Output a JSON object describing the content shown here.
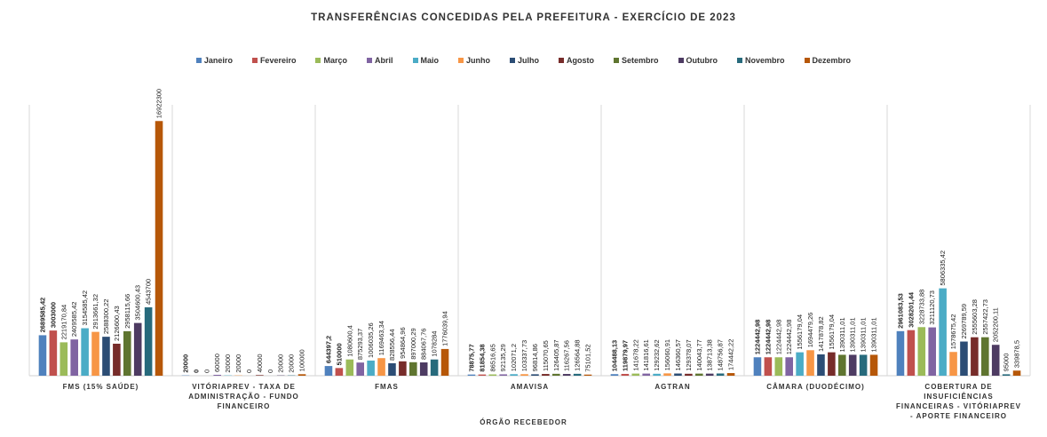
{
  "chart_data": {
    "type": "bar",
    "title": "TRANSFERÊNCIAS CONCEDIDAS PELA PREFEITURA - EXERCÍCIO DE 2023",
    "x_label": "ÓRGÃO RECEBEDOR",
    "categories": [
      "FMS (15% SAÚDE)",
      "VITÓRIAPREV - TAXA DE ADMINISTRAÇÃO - FUNDO FINANCEIRO",
      "FMAS",
      "AMAVISA",
      "AGTRAN",
      "CÂMARA (DUODÉCIMO)",
      "COBERTURA DE INSUFICIÊNCIAS FINANCEIRAS - VITÓRIAPREV - APORTE FINANCEIRO"
    ],
    "ylim": [
      0,
      18000000
    ],
    "series": [
      {
        "name": "Janeiro",
        "color": "#4f81bd",
        "values": [
          2689585.42,
          20000,
          644397.2,
          78875.77,
          104488.13,
          1224442.98,
          2961083.53
        ],
        "value_labels": [
          "2689585,42",
          "20000",
          "644397,2",
          "78875,77",
          "104488,13",
          "1224442,98",
          "2961083,53"
        ]
      },
      {
        "name": "Fevereiro",
        "color": "#c0504d",
        "values": [
          3003000,
          0,
          510000,
          81854.38,
          119879.97,
          1224442.98,
          3028201.44
        ],
        "value_labels": [
          "3003000",
          "0",
          "510000",
          "81854,38",
          "119879,97",
          "1224442,98",
          "3028201,44"
        ]
      },
      {
        "name": "Março",
        "color": "#9bbb59",
        "values": [
          2219170.84,
          0,
          1080600.4,
          86516.65,
          141678.22,
          1224442.98,
          3228733.88
        ],
        "value_labels": [
          "2219170,84",
          "0",
          "1080600,4",
          "86516,65",
          "141678,22",
          "1224442,98",
          "3228733,88"
        ]
      },
      {
        "name": "Abril",
        "color": "#8064a2",
        "values": [
          2409585.42,
          60000,
          875293.37,
          92135.29,
          141816.61,
          1224442.98,
          3211120.73
        ],
        "value_labels": [
          "2409585,42",
          "60000",
          "875293,37",
          "92135,29",
          "141816,61",
          "1224442,98",
          "3211120,73"
        ]
      },
      {
        "name": "Maio",
        "color": "#4bacc6",
        "values": [
          3154585.42,
          20000,
          1006035.26,
          102071.2,
          129232.62,
          1556179.04,
          5806335.42
        ],
        "value_labels": [
          "3154585,42",
          "20000",
          "1006035,26",
          "102071,2",
          "129232,62",
          "1556179,04",
          "5806335,42"
        ]
      },
      {
        "name": "Junho",
        "color": "#f79646",
        "values": [
          2913661.32,
          20000,
          1169463.34,
          103337.73,
          156060.91,
          1694479.26,
          1578675.42
        ],
        "value_labels": [
          "2913661,32",
          "20000",
          "1169463,34",
          "103337,73",
          "156060,91",
          "1694479,26",
          "1578675,42"
        ]
      },
      {
        "name": "Julho",
        "color": "#2c4d75",
        "values": [
          2588300.22,
          0,
          828556.44,
          96814.86,
          146360.57,
          1417878.82,
          2269789.59
        ],
        "value_labels": [
          "2588300,22",
          "0",
          "828556,44",
          "96814,86",
          "146360,57",
          "1417878,82",
          "2269789,59"
        ]
      },
      {
        "name": "Agosto",
        "color": "#772c2a",
        "values": [
          2126600.43,
          40000,
          954864.96,
          115070.65,
          129378.07,
          1556179.04,
          2555603.28
        ],
        "value_labels": [
          "2126600,43",
          "40000",
          "954864,96",
          "115070,65",
          "129378,07",
          "1556179,04",
          "2555603,28"
        ]
      },
      {
        "name": "Setembro",
        "color": "#5f7530",
        "values": [
          2958115.66,
          0,
          897000.29,
          126405.87,
          140043.77,
          1390311.01,
          2557422.73
        ],
        "value_labels": [
          "2958115,66",
          "0",
          "897000,29",
          "126405,87",
          "140043,77",
          "1390311,01",
          "2557422,73"
        ]
      },
      {
        "name": "Outubro",
        "color": "#4d3b62",
        "values": [
          3504600.43,
          20000,
          884067.76,
          116267.56,
          138713.38,
          1390311.01,
          2052200.11
        ],
        "value_labels": [
          "3504600,43",
          "20000",
          "884067,76",
          "116267,56",
          "138713,38",
          "1390311,01",
          "2052200,11"
        ]
      },
      {
        "name": "Novembro",
        "color": "#276a7c",
        "values": [
          4543700,
          20000,
          1078284,
          126564.88,
          148756.87,
          1390311.01,
          95000
        ],
        "value_labels": [
          "4543700",
          "20000",
          "1078284",
          "126564,88",
          "148756,87",
          "1390311,01",
          "95000"
        ]
      },
      {
        "name": "Dezembro",
        "color": "#b65708",
        "values": [
          16922300,
          100000,
          1776039.94,
          75101.52,
          174442.22,
          1390311.01,
          339878.5
        ],
        "value_labels": [
          "16922300",
          "100000",
          "1776039,94",
          "75101,52",
          "174442,22",
          "1390311,01",
          "339878,5"
        ]
      }
    ]
  }
}
